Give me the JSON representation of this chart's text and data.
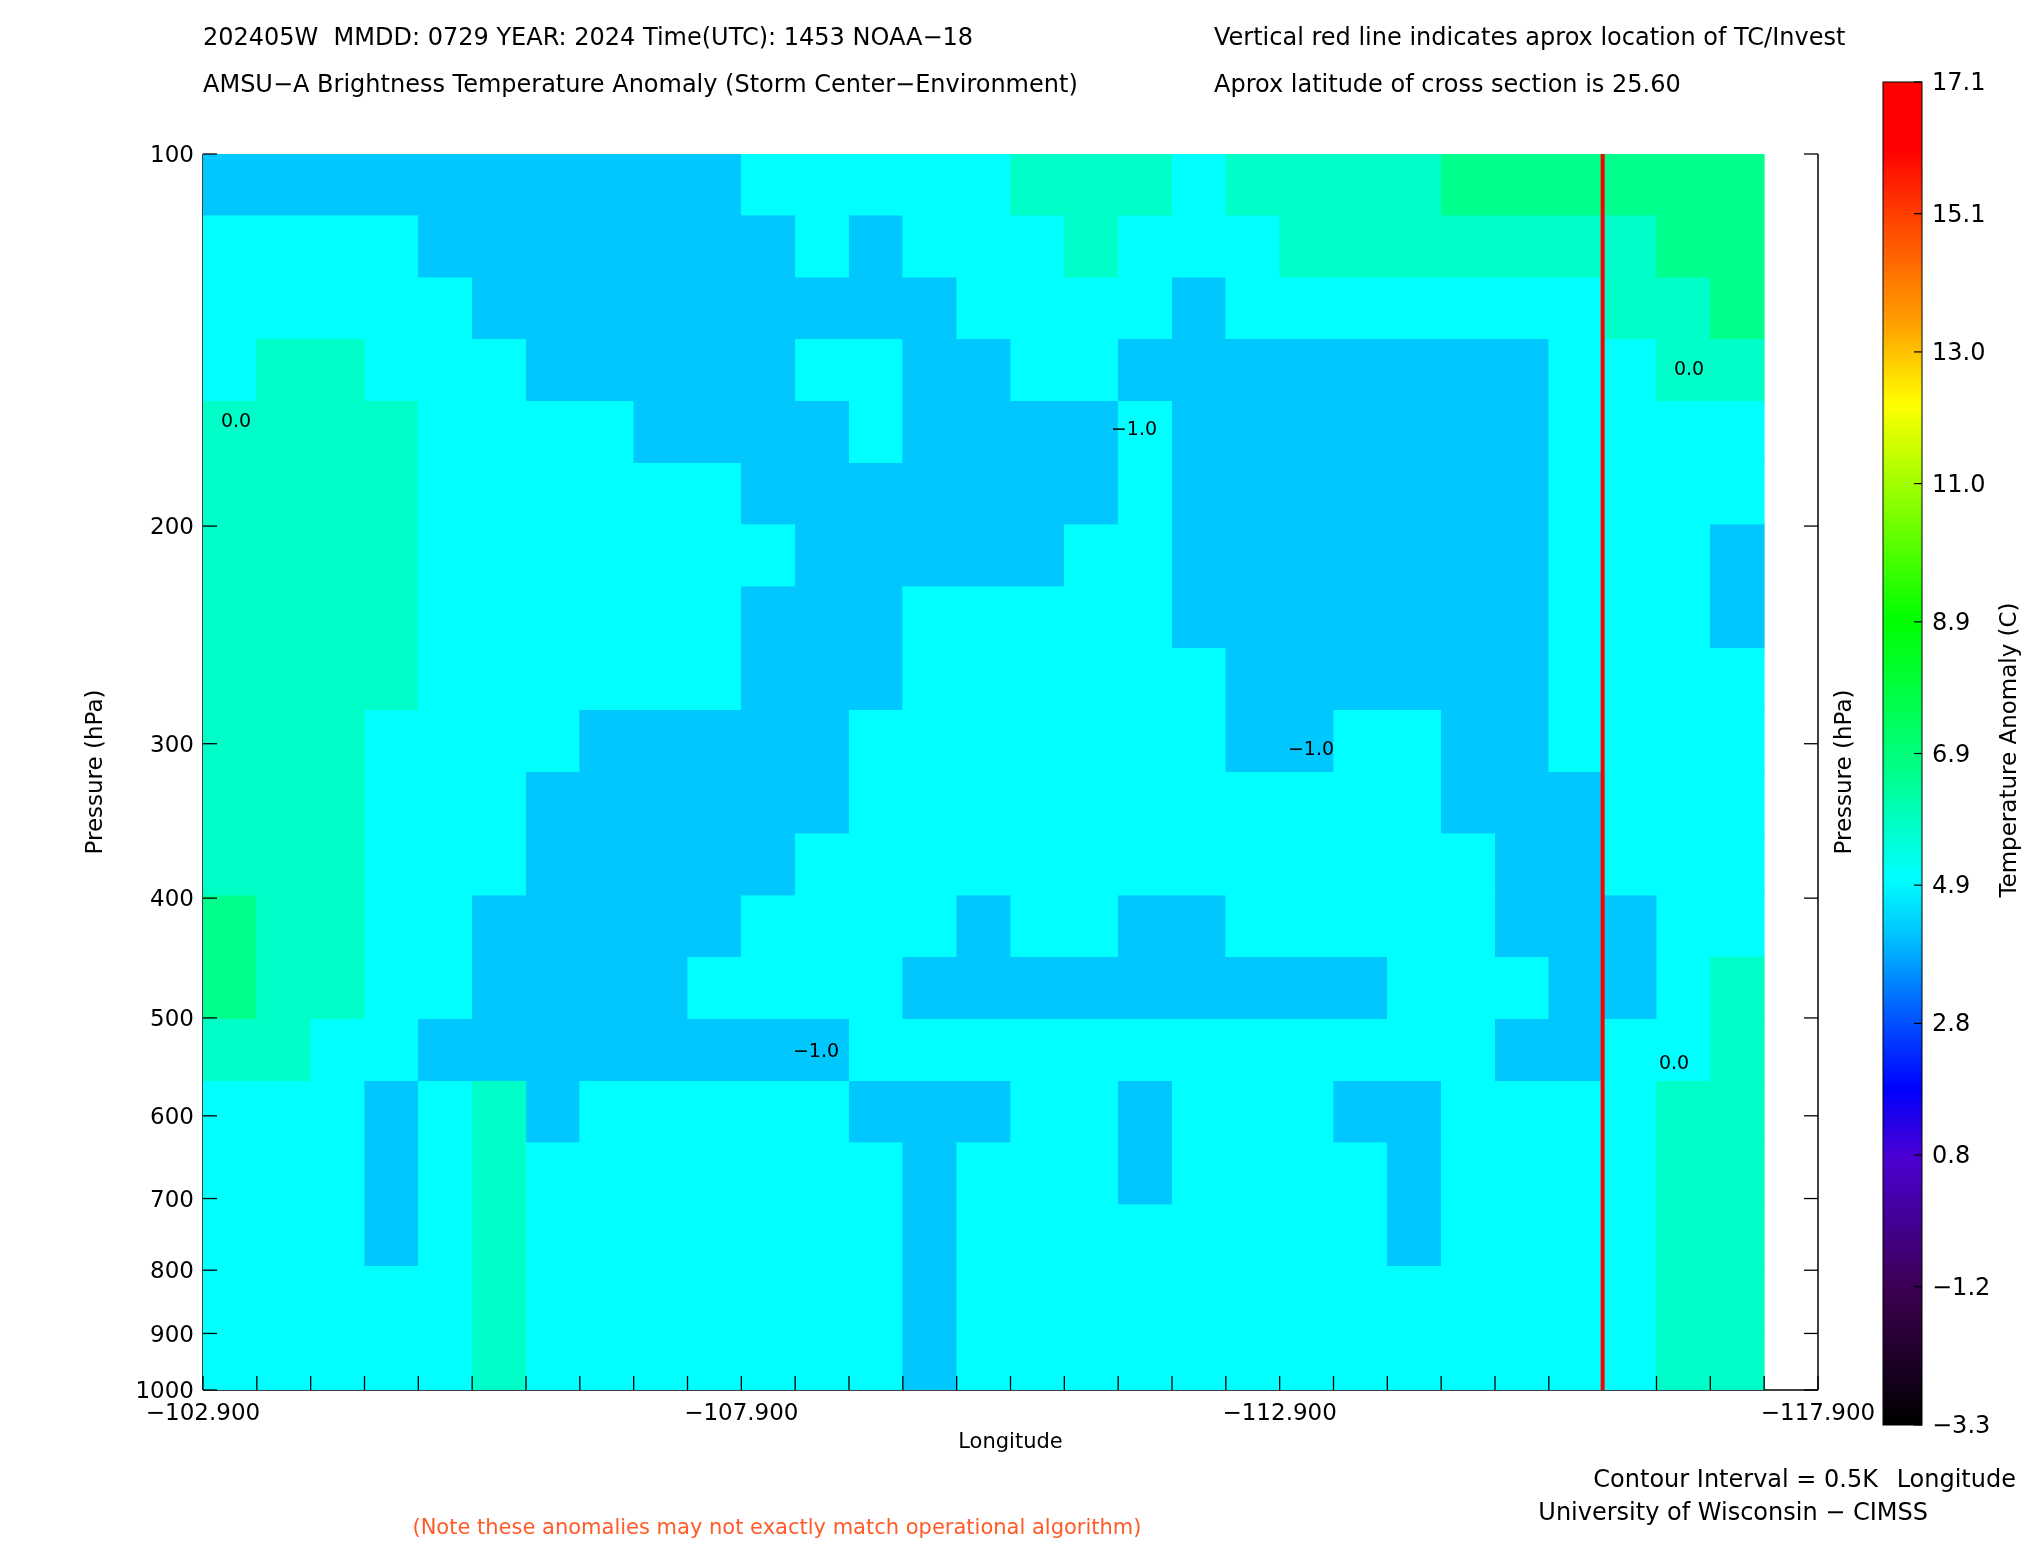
{
  "chart_data": {
    "type": "heatmap",
    "title": "202405W  MMDD: 0729 YEAR: 2024 Time(UTC): 1453 NOAA−18",
    "subtitle": "AMSU−A Brightness Temperature Anomaly (Storm Center−Environment)",
    "xlabel": "Longitude",
    "ylabel": "Pressure (hPa)",
    "y2label": "Pressure (hPa)",
    "clabel": "Temperature Anomaly (C)",
    "annotations": [
      "Vertical red line indicates aprox location of TC/Invest",
      "Aprox latitude of cross section is 25.60",
      "Contour Interval = 0.5K",
      "Longitude",
      "University of Wisconsin − CIMSS",
      "(Note these anomalies may not exactly match operational algorithm)",
      "0.0",
      "−1.0",
      "0.0",
      "−1.0",
      "−1.0",
      "0.0"
    ],
    "x": [
      -103.15,
      -103.65,
      -104.15,
      -104.65,
      -105.15,
      -105.65,
      -106.15,
      -106.65,
      -107.15,
      -107.65,
      -108.15,
      -108.65,
      -109.15,
      -109.65,
      -110.15,
      -110.65,
      -111.15,
      -111.65,
      -112.15,
      -112.65,
      -113.15,
      -113.65,
      -114.15,
      -114.65,
      -115.15,
      -115.65,
      -116.15,
      -116.65,
      -117.15
    ],
    "cells": [
      [
        4.2,
        4.2,
        4.2,
        4.2,
        4.2,
        4.2,
        4.2,
        4.2,
        4.2,
        4.2,
        5,
        5,
        5,
        5,
        5,
        5.8,
        5.8,
        5.8,
        5,
        5.8,
        5.8,
        5.8,
        5.8,
        6.6,
        6.6,
        6.6,
        6.6,
        6.6,
        6.6
      ],
      [
        5,
        5,
        5,
        5,
        4.2,
        4.2,
        4.2,
        4.2,
        4.2,
        4.2,
        4.2,
        5,
        4.2,
        5,
        5,
        5,
        5.8,
        5,
        5,
        5,
        5.8,
        5.8,
        5.8,
        5.8,
        5.8,
        5.8,
        5.8,
        6.6,
        6.6
      ],
      [
        5,
        5,
        5,
        5,
        5,
        4.2,
        4.2,
        4.2,
        4.2,
        4.2,
        4.2,
        4.2,
        4.2,
        4.2,
        5,
        5,
        5,
        5,
        4.2,
        5,
        5,
        5,
        5,
        5,
        5,
        5,
        5.8,
        5.8,
        6.6
      ],
      [
        5,
        5.8,
        5.8,
        5,
        5,
        5,
        4.2,
        4.2,
        4.2,
        4.2,
        4.2,
        5,
        5,
        4.2,
        4.2,
        5,
        5,
        4.2,
        4.2,
        4.2,
        4.2,
        4.2,
        4.2,
        4.2,
        4.2,
        5,
        5,
        5.8,
        5.8
      ],
      [
        5.8,
        5.8,
        5.8,
        5.8,
        5,
        5,
        5,
        5,
        4.2,
        4.2,
        4.2,
        4.2,
        5,
        4.2,
        4.2,
        4.2,
        4.2,
        5,
        4.2,
        4.2,
        4.2,
        4.2,
        4.2,
        4.2,
        4.2,
        5,
        5,
        5,
        5
      ],
      [
        5.8,
        5.8,
        5.8,
        5.8,
        5,
        5,
        5,
        5,
        5,
        5,
        4.2,
        4.2,
        4.2,
        4.2,
        4.2,
        4.2,
        4.2,
        5,
        4.2,
        4.2,
        4.2,
        4.2,
        4.2,
        4.2,
        4.2,
        5,
        5,
        5,
        5
      ],
      [
        5.8,
        5.8,
        5.8,
        5.8,
        5,
        5,
        5,
        5,
        5,
        5,
        5,
        4.2,
        4.2,
        4.2,
        4.2,
        4.2,
        5,
        5,
        4.2,
        4.2,
        4.2,
        4.2,
        4.2,
        4.2,
        4.2,
        5,
        5,
        5,
        4.2
      ],
      [
        5.8,
        5.8,
        5.8,
        5.8,
        5,
        5,
        5,
        5,
        5,
        5,
        4.2,
        4.2,
        4.2,
        5,
        5,
        5,
        5,
        5,
        4.2,
        4.2,
        4.2,
        4.2,
        4.2,
        4.2,
        4.2,
        5,
        5,
        5,
        4.2
      ],
      [
        5.8,
        5.8,
        5.8,
        5.8,
        5,
        5,
        5,
        5,
        5,
        5,
        4.2,
        4.2,
        4.2,
        5,
        5,
        5,
        5,
        5,
        5,
        4.2,
        4.2,
        4.2,
        4.2,
        4.2,
        4.2,
        5,
        5,
        5,
        5
      ],
      [
        5.8,
        5.8,
        5.8,
        5,
        5,
        5,
        5,
        4.2,
        4.2,
        4.2,
        4.2,
        4.2,
        5,
        5,
        5,
        5,
        5,
        5,
        5,
        4.2,
        4.2,
        5,
        5,
        4.2,
        4.2,
        5,
        5,
        5,
        5
      ],
      [
        5.8,
        5.8,
        5.8,
        5,
        5,
        5,
        4.2,
        4.2,
        4.2,
        4.2,
        4.2,
        4.2,
        5,
        5,
        5,
        5,
        5,
        5,
        5,
        5,
        5,
        5,
        5,
        4.2,
        4.2,
        4.2,
        5,
        5,
        5
      ],
      [
        5.8,
        5.8,
        5.8,
        5,
        5,
        5,
        4.2,
        4.2,
        4.2,
        4.2,
        4.2,
        5,
        5,
        5,
        5,
        5,
        5,
        5,
        5,
        5,
        5,
        5,
        5,
        5,
        4.2,
        4.2,
        5,
        5,
        5
      ],
      [
        6.6,
        5.8,
        5.8,
        5,
        5,
        4.2,
        4.2,
        4.2,
        4.2,
        4.2,
        5,
        5,
        5,
        5,
        4.2,
        5,
        5,
        4.2,
        4.2,
        5,
        5,
        5,
        5,
        5,
        4.2,
        4.2,
        4.2,
        5,
        5
      ],
      [
        6.6,
        5.8,
        5.8,
        5,
        5,
        4.2,
        4.2,
        4.2,
        4.2,
        5,
        5,
        5,
        5,
        4.2,
        4.2,
        4.2,
        4.2,
        4.2,
        4.2,
        4.2,
        4.2,
        4.2,
        5,
        5,
        5,
        4.2,
        4.2,
        5,
        5.8
      ],
      [
        5.8,
        5.8,
        5,
        5,
        4.2,
        4.2,
        4.2,
        4.2,
        4.2,
        4.2,
        4.2,
        4.2,
        5,
        5,
        5,
        5,
        5,
        5,
        5,
        5,
        5,
        5,
        5,
        5,
        4.2,
        4.2,
        5,
        5,
        5.8
      ],
      [
        5,
        5,
        5,
        4.2,
        5,
        5.8,
        4.2,
        5,
        5,
        5,
        5,
        5,
        4.2,
        4.2,
        4.2,
        5,
        5,
        4.2,
        5,
        5,
        5,
        4.2,
        4.2,
        5,
        5,
        5,
        5,
        5.8,
        5.8
      ],
      [
        5,
        5,
        5,
        4.2,
        5,
        5.8,
        5,
        5,
        5,
        5,
        5,
        5,
        5,
        4.2,
        5,
        5,
        5,
        4.2,
        5,
        5,
        5,
        5,
        4.2,
        5,
        5,
        5,
        5,
        5.8,
        5.8
      ],
      [
        5,
        5,
        5,
        4.2,
        5,
        5.8,
        5,
        5,
        5,
        5,
        5,
        5,
        5,
        4.2,
        5,
        5,
        5,
        5,
        5,
        5,
        5,
        5,
        4.2,
        5,
        5,
        5,
        5,
        5.8,
        5.8
      ],
      [
        5,
        5,
        5,
        5,
        5,
        5.8,
        5,
        5,
        5,
        5,
        5,
        5,
        5,
        4.2,
        5,
        5,
        5,
        5,
        5,
        5,
        5,
        5,
        5,
        5,
        5,
        5,
        5,
        5.8,
        5.8
      ],
      [
        5,
        5,
        5,
        5,
        5,
        5.8,
        5,
        5,
        5,
        5,
        5,
        5,
        5,
        4.2,
        5,
        5,
        5,
        5,
        5,
        5,
        5,
        5,
        5,
        5,
        5,
        5,
        5,
        5.8,
        5.8
      ]
    ],
    "clim": [
      -3.3,
      17.1
    ],
    "cticks": [
      {
        "value": -3.3,
        "label": "−3.3"
      },
      {
        "value": -1.2,
        "label": "−1.2"
      },
      0.8,
      2.8,
      4.9,
      6.9,
      8.9,
      {
        "value": 11,
        "label": "11.0"
      },
      {
        "value": 13,
        "label": "13.0"
      },
      15.1,
      17.1
    ],
    "xlim": [
      -102.9,
      -117.9
    ],
    "xticks": [
      {
        "value": -102.9,
        "label": "−102.900"
      },
      {
        "value": -103.4,
        "label": null
      },
      {
        "value": -103.9,
        "label": null
      },
      {
        "value": -104.4,
        "label": null
      },
      {
        "value": -104.9,
        "label": null
      },
      {
        "value": -105.4,
        "label": null
      },
      {
        "value": -105.9,
        "label": null
      },
      {
        "value": -106.4,
        "label": null
      },
      {
        "value": -106.9,
        "label": null
      },
      {
        "value": -107.4,
        "label": null
      },
      {
        "value": -107.9,
        "label": "−107.900"
      },
      {
        "value": -108.4,
        "label": null
      },
      {
        "value": -108.9,
        "label": null
      },
      {
        "value": -109.4,
        "label": null
      },
      {
        "value": -109.9,
        "label": null
      },
      {
        "value": -110.4,
        "label": null
      },
      {
        "value": -110.9,
        "label": null
      },
      {
        "value": -111.4,
        "label": null
      },
      {
        "value": -111.9,
        "label": null
      },
      {
        "value": -112.4,
        "label": null
      },
      {
        "value": -112.9,
        "label": "−112.900"
      },
      {
        "value": -113.4,
        "label": null
      },
      {
        "value": -113.9,
        "label": null
      },
      {
        "value": -114.4,
        "label": null
      },
      {
        "value": -114.9,
        "label": null
      },
      {
        "value": -115.4,
        "label": null
      },
      {
        "value": -115.9,
        "label": null
      },
      {
        "value": -116.4,
        "label": null
      },
      {
        "value": -116.9,
        "label": null
      },
      {
        "value": -117.4,
        "label": null
      },
      {
        "value": -117.9,
        "label": "−117.900"
      }
    ],
    "ylim": [
      1000,
      100
    ],
    "yticks": [
      100,
      200,
      300,
      400,
      500,
      600,
      700,
      800,
      900,
      1000
    ],
    "log": "y",
    "ref_lines": [
      {
        "axis": "x",
        "value": -115.9,
        "color": "#ff0000"
      }
    ]
  }
}
